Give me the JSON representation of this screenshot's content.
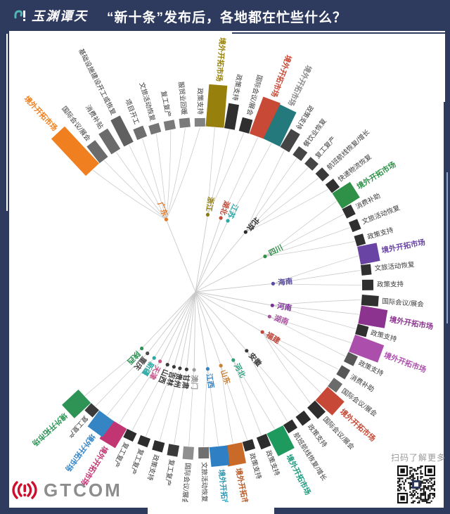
{
  "header": {
    "brand": "玉渊谭天",
    "title": "“新十条”发布后，各地都在忙些什么？"
  },
  "footer": {
    "logo_text": "GTCOM",
    "qr_caption": "扫码了解更多"
  },
  "colors": {
    "bg_navy": "#2e3a5e",
    "card_white": "#ffffff",
    "accent_light_blue": "#8fa8cf",
    "logo_red": "#ce0e2d",
    "gray_text": "#8d8d8d",
    "line_gray": "#c9c9c9",
    "small_label": "#3a3a3a"
  },
  "chart_data": {
    "type": "radial-edge-bundle",
    "title": "“新十条”发布后，各地都在忙些什么？",
    "center": [
      287,
      408
    ],
    "inner_radius": 228,
    "start_angle": 133,
    "end_angle": -137,
    "hub": [
      278,
      415
    ],
    "node_radius": 111,
    "segments": [
      {
        "label": "境外开拓市场",
        "color": "#ef7f1f",
        "len": 72,
        "big": true
      },
      {
        "label": "国际会议/展会",
        "color": "#6b6b6b",
        "len": 30,
        "big": false
      },
      {
        "label": "消费补贴",
        "color": "#6b6b6b",
        "len": 34,
        "big": false
      },
      {
        "label": "基础设施建设开工或恢复",
        "color": "#606060",
        "len": 42,
        "big": false
      },
      {
        "label": "项目开工",
        "color": "#6e6e6e",
        "len": 16,
        "big": false
      },
      {
        "label": "文旅活动恢复",
        "color": "#757575",
        "len": 13,
        "big": false
      },
      {
        "label": "复工复产",
        "color": "#7a7a7a",
        "len": 13,
        "big": false
      },
      {
        "label": "服贸业回暖",
        "color": "#7a7a7a",
        "len": 13,
        "big": false
      },
      {
        "label": "政策支持",
        "color": "#828282",
        "len": 12,
        "big": false
      },
      {
        "label": "境外开拓市场",
        "color": "#97800b",
        "len": 60,
        "big": true
      },
      {
        "label": "政策支持",
        "color": "#2f2f2f",
        "len": 36,
        "big": false
      },
      {
        "label": "国际会议/展会",
        "color": "#2f2f2f",
        "len": 20,
        "big": false
      },
      {
        "label": "境外开拓市场",
        "color": "#c84936",
        "len": 56,
        "big": true
      },
      {
        "label": "境外开拓市场",
        "color": "#23797c",
        "len": 54,
        "big": true,
        "label_color": "#8c8c8c"
      },
      {
        "label": "政策支持",
        "color": "#454545",
        "len": 30,
        "big": false
      },
      {
        "label": "餐饮业恢复",
        "color": "#454545",
        "len": 15,
        "big": false
      },
      {
        "label": "复工复产",
        "color": "#454545",
        "len": 13,
        "big": false
      },
      {
        "label": "航班航线恢复/增长",
        "color": "#3a3a3a",
        "len": 13,
        "big": false
      },
      {
        "label": "快递物流恢复",
        "color": "#303030",
        "len": 14,
        "big": false
      },
      {
        "label": "境外开拓市场",
        "color": "#2f9148",
        "len": 30,
        "big": true
      },
      {
        "label": "消费补助",
        "color": "#303030",
        "len": 14,
        "big": false
      },
      {
        "label": "文旅活动恢复",
        "color": "#303030",
        "len": 13,
        "big": false
      },
      {
        "label": "政策支持",
        "color": "#303030",
        "len": 13,
        "big": false
      },
      {
        "label": "境外开拓市场",
        "color": "#6a44a5",
        "len": 28,
        "big": true
      },
      {
        "label": "文旅活动恢复",
        "color": "#303030",
        "len": 14,
        "big": false
      },
      {
        "label": "政策支持",
        "color": "#303030",
        "len": 16,
        "big": false
      },
      {
        "label": "国际会议/展会",
        "color": "#303030",
        "len": 24,
        "big": false
      },
      {
        "label": "境外开拓市场",
        "color": "#8c3390",
        "len": 38,
        "big": true
      },
      {
        "label": "政策支持",
        "color": "#303030",
        "len": 16,
        "big": false
      },
      {
        "label": "境外开拓市场",
        "color": "#ac4fac",
        "len": 44,
        "big": true
      },
      {
        "label": "政策支持",
        "color": "#575757",
        "len": 15,
        "big": false
      },
      {
        "label": "消费补助",
        "color": "#575757",
        "len": 14,
        "big": false
      },
      {
        "label": "国际会议/展会",
        "color": "#6b6b6b",
        "len": 15,
        "big": false
      },
      {
        "label": "境外开拓市场",
        "color": "#c74836",
        "len": 32,
        "big": true
      },
      {
        "label": "国际会议/展会",
        "color": "#2d2d2d",
        "len": 22,
        "big": false
      },
      {
        "label": "政策支持",
        "color": "#2d2d2d",
        "len": 16,
        "big": false
      },
      {
        "label": "航班航线恢复/增长",
        "color": "#2d2d2d",
        "len": 14,
        "big": false
      },
      {
        "label": "境外开拓市场",
        "color": "#1f9a5e",
        "len": 36,
        "big": true,
        "label_color": "#1f9a7e"
      },
      {
        "label": "政策支持",
        "color": "#2d2d2d",
        "len": 18,
        "big": false
      },
      {
        "label": "政策支持",
        "color": "#2d2d2d",
        "len": 14,
        "big": false
      },
      {
        "label": "境外开拓市场",
        "color": "#c96a28",
        "len": 30,
        "big": true,
        "label_color": "#b75b2a"
      },
      {
        "label": "境外开拓市场",
        "color": "#2e7fc4",
        "len": 28,
        "big": true,
        "label_color": "#2e9ab5"
      },
      {
        "label": "文旅活动恢复",
        "color": "#707070",
        "len": 16,
        "big": false
      },
      {
        "label": "国际会议/展会",
        "color": "#8f8f8f",
        "len": 18,
        "big": false
      },
      {
        "label": "复工复产",
        "color": "#3a3a3a",
        "len": 16,
        "big": false
      },
      {
        "label": "政策支持",
        "color": "#2d2d2d",
        "len": 14,
        "big": false
      },
      {
        "label": "复工复产",
        "color": "#2d2d2d",
        "len": 13,
        "big": false
      },
      {
        "label": "复工复产",
        "color": "#2d2d2d",
        "len": 13,
        "big": false
      },
      {
        "label": "境外开拓市场",
        "color": "#c23573",
        "len": 32,
        "big": true
      },
      {
        "label": "境外开拓市场",
        "color": "#3585c5",
        "len": 28,
        "big": true
      },
      {
        "label": "复工复产",
        "color": "#3a3a3a",
        "len": 14,
        "big": false
      },
      {
        "label": "境外开拓市场",
        "color": "#2e9455",
        "len": 32,
        "big": true
      }
    ],
    "provinces": [
      {
        "name": "广东",
        "color": "#e07b2a",
        "angle": 112,
        "segs": [
          0,
          1,
          2,
          3,
          4,
          5,
          6,
          7,
          8
        ]
      },
      {
        "name": "浙江",
        "color": "#8f7b0b",
        "angle": 81,
        "segs": [
          9,
          10,
          11
        ]
      },
      {
        "name": "湖北",
        "color": "#c44a38",
        "angle": 71,
        "segs": [
          12
        ]
      },
      {
        "name": "江苏",
        "color": "#2ba8a8",
        "angle": 65.5,
        "segs": [
          13
        ]
      },
      {
        "name": "北京",
        "color": "#2b2b2b",
        "angle": 50,
        "segs": [
          14,
          15,
          16,
          17,
          18
        ]
      },
      {
        "name": "四川",
        "color": "#2f9148",
        "angle": 27,
        "segs": [
          19,
          20,
          21,
          22
        ]
      },
      {
        "name": "海南",
        "color": "#5b4b9e",
        "angle": 6,
        "segs": [
          23,
          24,
          25
        ]
      },
      {
        "name": "河南",
        "color": "#7b3097",
        "angle": -10,
        "segs": [
          26,
          27,
          28
        ]
      },
      {
        "name": "湖南",
        "color": "#a855a0",
        "angle": -18.5,
        "segs": [
          29,
          30
        ]
      },
      {
        "name": "福建",
        "color": "#c0453a",
        "angle": -31,
        "segs": [
          31,
          32,
          33,
          34
        ]
      },
      {
        "name": "安徽",
        "color": "#3a3a3a",
        "angle": -49,
        "segs": [
          35,
          36
        ]
      },
      {
        "name": "河北",
        "color": "#2e9e7e",
        "angle": -61,
        "segs": [
          37,
          38
        ]
      },
      {
        "name": "山东",
        "color": "#c98136",
        "angle": -71,
        "segs": [
          39,
          40
        ]
      },
      {
        "name": "江西",
        "color": "#3585c5",
        "angle": -81,
        "segs": [
          41,
          42
        ]
      },
      {
        "name": "澳门",
        "color": "#9a9a9a",
        "angle": -91,
        "segs": [
          43
        ]
      },
      {
        "name": "甘肃",
        "color": "#3a3a3a",
        "angle": -96.5,
        "segs": [
          44
        ]
      },
      {
        "name": "贵州",
        "color": "#3a3a3a",
        "angle": -101.5,
        "segs": [
          45
        ]
      },
      {
        "name": "吉林",
        "color": "#3a3a3a",
        "angle": -106,
        "segs": [
          46
        ]
      },
      {
        "name": "山西",
        "color": "#3a3a3a",
        "angle": -111,
        "segs": [
          47
        ]
      },
      {
        "name": "天津",
        "color": "#c9548c",
        "angle": -117,
        "segs": [
          48
        ]
      },
      {
        "name": "新疆",
        "color": "#2ba8a4",
        "angle": -122,
        "segs": [
          49
        ]
      },
      {
        "name": "重庆",
        "color": "#4a4a4a",
        "angle": -128,
        "segs": [
          50
        ]
      },
      {
        "name": "陕西",
        "color": "#2e9455",
        "angle": -133.5,
        "segs": [
          51
        ]
      }
    ]
  }
}
